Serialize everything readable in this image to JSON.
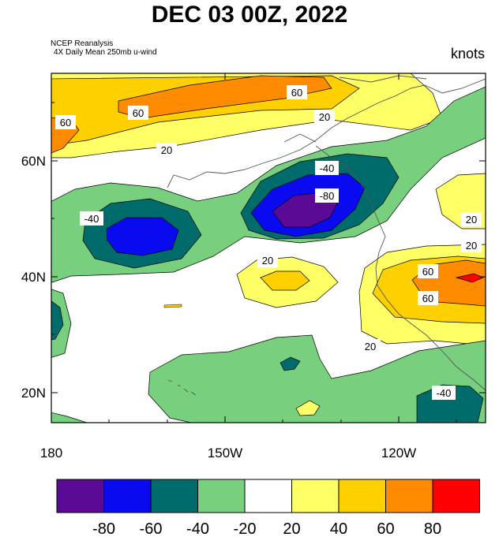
{
  "title": "DEC 03 00Z, 2022",
  "source_line1": "NCEP Reanalysis",
  "source_line2": "4X Daily Mean 250mb u-wind",
  "units": "knots",
  "lat_labels": [
    "60N",
    "40N",
    "20N"
  ],
  "lon_labels": [
    "180",
    "150W",
    "120W"
  ],
  "contour_labels": [
    "60",
    "60",
    "60",
    "20",
    "20",
    "-40",
    "-80",
    "-40",
    "20",
    "20",
    "20",
    "60",
    "60",
    "20",
    "-40"
  ],
  "colorbar": {
    "colors": [
      "#5a0a94",
      "#0a0af0",
      "#006b6b",
      "#78cf7e",
      "#ffffff",
      "#ffff66",
      "#ffd000",
      "#ff8c00",
      "#ff0000"
    ],
    "tick_labels": [
      "-80",
      "-60",
      "-40",
      "-20",
      "20",
      "40",
      "60",
      "80"
    ]
  }
}
